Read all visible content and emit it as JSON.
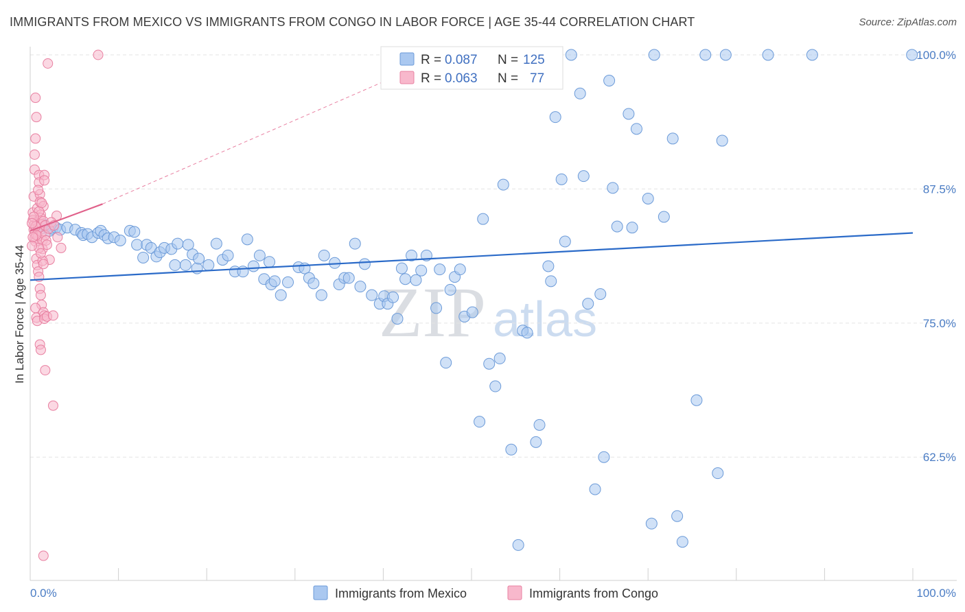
{
  "header": {
    "title": "IMMIGRANTS FROM MEXICO VS IMMIGRANTS FROM CONGO IN LABOR FORCE | AGE 35-44 CORRELATION CHART",
    "source": "Source: ZipAtlas.com"
  },
  "watermark": {
    "zip": "ZIP",
    "atlas": "atlas"
  },
  "colors": {
    "mexico_fill": "#aac8f0",
    "mexico_stroke": "#6b9ad8",
    "mexico_line": "#2a6ac8",
    "congo_fill": "#f8b8cc",
    "congo_stroke": "#e87fa0",
    "congo_line": "#e0608a",
    "grid": "#e3e3e3",
    "axis_text": "#4a7cc4"
  },
  "chart_data": {
    "type": "scatter",
    "title": "IMMIGRANTS FROM MEXICO VS IMMIGRANTS FROM CONGO IN LABOR FORCE | AGE 35-44 CORRELATION CHART",
    "xlabel": "",
    "ylabel": "In Labor Force | Age 35-44",
    "xlim": [
      0,
      100
    ],
    "ylim": [
      51,
      101.5
    ],
    "x_tick_labels": [
      "0.0%",
      "100.0%"
    ],
    "y_ticks": [
      {
        "value": 100.0,
        "label": "100.0%"
      },
      {
        "value": 87.5,
        "label": "87.5%"
      },
      {
        "value": 75.0,
        "label": "75.0%"
      },
      {
        "value": 62.5,
        "label": "62.5%"
      }
    ],
    "legend_position": "top-center",
    "stats": [
      {
        "r_label": "R =",
        "r": "0.087",
        "n_label": "N =",
        "n": "125"
      },
      {
        "r_label": "R =",
        "r": "0.063",
        "n_label": "N =",
        "n": "77"
      }
    ],
    "series": [
      {
        "name": "Immigrants from Mexico",
        "trend": {
          "x": [
            0,
            100
          ],
          "y": [
            79.0,
            83.4
          ]
        },
        "points": [
          [
            0.8,
            84.0
          ],
          [
            1.2,
            83.8
          ],
          [
            1.5,
            84.2
          ],
          [
            1.8,
            84.0
          ],
          [
            2.2,
            83.6
          ],
          [
            2.5,
            83.8
          ],
          [
            2.9,
            83.9
          ],
          [
            3.4,
            83.7
          ],
          [
            4.2,
            83.9
          ],
          [
            5.1,
            83.7
          ],
          [
            5.8,
            83.4
          ],
          [
            6.0,
            83.2
          ],
          [
            6.5,
            83.3
          ],
          [
            7.0,
            83.0
          ],
          [
            7.7,
            83.4
          ],
          [
            8.0,
            83.6
          ],
          [
            8.4,
            83.2
          ],
          [
            8.8,
            82.9
          ],
          [
            9.5,
            83.0
          ],
          [
            10.2,
            82.7
          ],
          [
            11.3,
            83.6
          ],
          [
            11.8,
            83.5
          ],
          [
            12.1,
            82.3
          ],
          [
            12.8,
            81.1
          ],
          [
            13.2,
            82.3
          ],
          [
            13.7,
            82.0
          ],
          [
            14.3,
            81.2
          ],
          [
            14.7,
            81.6
          ],
          [
            15.2,
            82.0
          ],
          [
            16.0,
            81.9
          ],
          [
            16.4,
            80.4
          ],
          [
            16.7,
            82.4
          ],
          [
            17.6,
            80.4
          ],
          [
            17.9,
            82.3
          ],
          [
            18.4,
            81.4
          ],
          [
            18.9,
            80.1
          ],
          [
            19.1,
            81.0
          ],
          [
            20.2,
            80.4
          ],
          [
            21.1,
            82.4
          ],
          [
            21.8,
            80.9
          ],
          [
            22.4,
            81.3
          ],
          [
            23.2,
            79.8
          ],
          [
            24.1,
            79.8
          ],
          [
            24.6,
            82.8
          ],
          [
            25.3,
            80.3
          ],
          [
            26.0,
            81.3
          ],
          [
            26.5,
            79.1
          ],
          [
            27.1,
            80.7
          ],
          [
            27.3,
            78.6
          ],
          [
            27.7,
            78.9
          ],
          [
            28.4,
            77.6
          ],
          [
            29.2,
            78.8
          ],
          [
            30.4,
            80.2
          ],
          [
            31.1,
            80.1
          ],
          [
            31.6,
            79.2
          ],
          [
            32.1,
            78.7
          ],
          [
            33.0,
            77.6
          ],
          [
            33.3,
            81.3
          ],
          [
            34.5,
            80.6
          ],
          [
            35.0,
            78.6
          ],
          [
            35.6,
            79.2
          ],
          [
            36.1,
            79.2
          ],
          [
            36.8,
            82.4
          ],
          [
            37.4,
            78.4
          ],
          [
            37.9,
            80.5
          ],
          [
            38.7,
            77.6
          ],
          [
            39.6,
            76.8
          ],
          [
            40.1,
            77.5
          ],
          [
            40.5,
            76.8
          ],
          [
            41.1,
            77.4
          ],
          [
            41.6,
            75.4
          ],
          [
            42.1,
            80.1
          ],
          [
            42.5,
            79.1
          ],
          [
            43.2,
            81.3
          ],
          [
            43.7,
            79.0
          ],
          [
            44.3,
            79.9
          ],
          [
            44.9,
            81.3
          ],
          [
            46.0,
            76.4
          ],
          [
            46.4,
            80.0
          ],
          [
            47.1,
            71.3
          ],
          [
            47.6,
            78.1
          ],
          [
            48.1,
            79.3
          ],
          [
            48.7,
            80.0
          ],
          [
            49.2,
            75.6
          ],
          [
            50.1,
            76.0
          ],
          [
            50.9,
            65.8
          ],
          [
            51.3,
            84.7
          ],
          [
            52.0,
            71.2
          ],
          [
            52.7,
            69.1
          ],
          [
            53.2,
            71.7
          ],
          [
            53.6,
            87.9
          ],
          [
            54.5,
            63.2
          ],
          [
            55.3,
            54.3
          ],
          [
            55.8,
            74.3
          ],
          [
            56.3,
            74.1
          ],
          [
            57.3,
            63.9
          ],
          [
            57.7,
            65.5
          ],
          [
            58.7,
            80.3
          ],
          [
            59.0,
            78.9
          ],
          [
            59.5,
            94.2
          ],
          [
            60.2,
            88.4
          ],
          [
            60.6,
            82.6
          ],
          [
            61.3,
            100.0
          ],
          [
            62.3,
            96.4
          ],
          [
            62.7,
            88.7
          ],
          [
            63.2,
            76.8
          ],
          [
            64.0,
            59.5
          ],
          [
            64.6,
            77.7
          ],
          [
            65.0,
            62.5
          ],
          [
            65.6,
            97.6
          ],
          [
            66.0,
            87.6
          ],
          [
            66.5,
            84.0
          ],
          [
            67.8,
            94.5
          ],
          [
            68.2,
            83.9
          ],
          [
            68.7,
            93.1
          ],
          [
            70.0,
            86.6
          ],
          [
            70.4,
            56.3
          ],
          [
            70.7,
            100.0
          ],
          [
            71.8,
            84.9
          ],
          [
            72.8,
            92.2
          ],
          [
            73.3,
            57.0
          ],
          [
            73.9,
            54.6
          ],
          [
            75.5,
            67.8
          ],
          [
            76.5,
            100.0
          ],
          [
            77.9,
            61.0
          ],
          [
            78.4,
            92.0
          ],
          [
            78.8,
            100.0
          ],
          [
            83.6,
            100.0
          ],
          [
            88.6,
            100.0
          ],
          [
            99.9,
            100.0
          ]
        ]
      },
      {
        "name": "Immigrants from Congo",
        "trend": {
          "x": [
            0,
            8.2
          ],
          "y": [
            83.6,
            86.1
          ]
        },
        "extension": {
          "x": [
            8.2,
            47.0
          ],
          "y": [
            86.1,
            100.0
          ]
        },
        "points": [
          [
            0.3,
            85.3
          ],
          [
            0.3,
            84.6
          ],
          [
            0.4,
            84.1
          ],
          [
            0.4,
            83.7
          ],
          [
            0.5,
            83.3
          ],
          [
            0.5,
            82.9
          ],
          [
            0.6,
            82.6
          ],
          [
            0.4,
            86.8
          ],
          [
            0.5,
            89.3
          ],
          [
            0.5,
            90.7
          ],
          [
            0.6,
            92.2
          ],
          [
            0.6,
            96.0
          ],
          [
            0.7,
            94.2
          ],
          [
            0.8,
            85.7
          ],
          [
            0.8,
            84.4
          ],
          [
            0.9,
            83.9
          ],
          [
            0.9,
            83.1
          ],
          [
            1.0,
            88.8
          ],
          [
            1.0,
            88.1
          ],
          [
            1.1,
            87.0
          ],
          [
            1.1,
            86.3
          ],
          [
            1.2,
            85.1
          ],
          [
            1.2,
            84.8
          ],
          [
            1.3,
            84.2
          ],
          [
            1.3,
            83.5
          ],
          [
            1.4,
            82.7
          ],
          [
            1.4,
            81.9
          ],
          [
            0.7,
            81.0
          ],
          [
            0.8,
            80.4
          ],
          [
            0.9,
            79.8
          ],
          [
            1.0,
            79.3
          ],
          [
            1.1,
            78.2
          ],
          [
            1.2,
            77.6
          ],
          [
            1.3,
            76.7
          ],
          [
            0.6,
            76.4
          ],
          [
            0.7,
            75.5
          ],
          [
            0.8,
            75.2
          ],
          [
            1.5,
            85.9
          ],
          [
            1.5,
            84.5
          ],
          [
            1.6,
            88.8
          ],
          [
            1.6,
            88.3
          ],
          [
            1.7,
            84.1
          ],
          [
            1.7,
            83.2
          ],
          [
            1.8,
            82.7
          ],
          [
            1.1,
            73.0
          ],
          [
            1.2,
            72.5
          ],
          [
            1.5,
            76.0
          ],
          [
            1.6,
            75.7
          ],
          [
            1.6,
            75.4
          ],
          [
            1.9,
            75.6
          ],
          [
            1.7,
            70.6
          ],
          [
            2.6,
            75.7
          ],
          [
            2.2,
            80.9
          ],
          [
            3.0,
            85.0
          ],
          [
            3.1,
            83.0
          ],
          [
            3.5,
            82.0
          ],
          [
            1.4,
            80.8
          ],
          [
            1.5,
            80.5
          ],
          [
            1.9,
            82.3
          ],
          [
            2.1,
            83.8
          ],
          [
            2.4,
            84.4
          ],
          [
            2.7,
            84.1
          ],
          [
            1.0,
            85.4
          ],
          [
            1.3,
            86.2
          ],
          [
            0.9,
            87.4
          ],
          [
            2.0,
            99.2
          ],
          [
            7.7,
            100.0
          ],
          [
            2.6,
            67.3
          ],
          [
            1.5,
            53.3
          ],
          [
            0.4,
            84.9
          ],
          [
            0.6,
            84.0
          ],
          [
            0.7,
            83.2
          ],
          [
            1.0,
            82.0
          ],
          [
            1.2,
            81.5
          ],
          [
            0.3,
            83.0
          ],
          [
            0.2,
            84.3
          ],
          [
            0.2,
            82.2
          ]
        ]
      }
    ]
  },
  "legend": {
    "items": [
      {
        "label": "Immigrants from Mexico"
      },
      {
        "label": "Immigrants from Congo"
      }
    ]
  }
}
